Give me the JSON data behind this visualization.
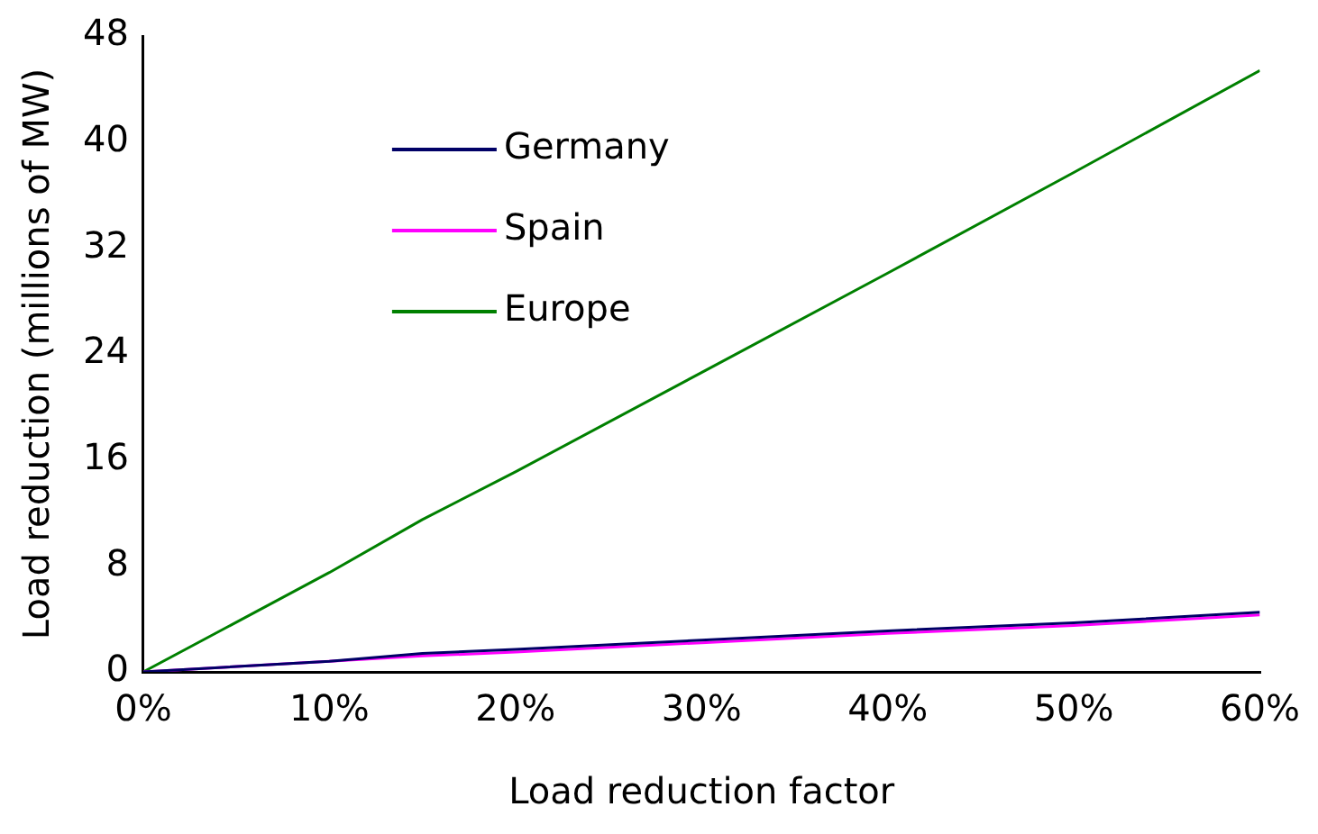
{
  "chart_data": {
    "type": "line",
    "xlabel": "Load reduction factor",
    "ylabel": "Load reduction (millions of MW)",
    "x": [
      0,
      10,
      15,
      20,
      30,
      40,
      50,
      60
    ],
    "series": [
      {
        "name": "Germany",
        "color": "#000066",
        "values": [
          0,
          0.8,
          1.4,
          1.7,
          2.4,
          3.1,
          3.7,
          4.5
        ]
      },
      {
        "name": "Spain",
        "color": "#ff00ff",
        "values": [
          0,
          0.8,
          1.2,
          1.5,
          2.2,
          2.9,
          3.5,
          4.3
        ]
      },
      {
        "name": "Europe",
        "color": "#008000",
        "values": [
          0,
          7.5,
          11.5,
          15.1,
          22.6,
          30.1,
          37.7,
          45.4
        ]
      }
    ],
    "xlim": [
      0,
      60
    ],
    "xticks": [
      {
        "value": 0,
        "label": "0%"
      },
      {
        "value": 10,
        "label": "10%"
      },
      {
        "value": 20,
        "label": "20%"
      },
      {
        "value": 30,
        "label": "30%"
      },
      {
        "value": 40,
        "label": "40%"
      },
      {
        "value": 50,
        "label": "50%"
      },
      {
        "value": 60,
        "label": "60%"
      }
    ],
    "ylim": [
      0,
      48
    ],
    "yticks": [
      0,
      8,
      16,
      24,
      32,
      40,
      48
    ],
    "grid": false,
    "legend": "top left",
    "marker": "none",
    "line_style": "solid"
  }
}
